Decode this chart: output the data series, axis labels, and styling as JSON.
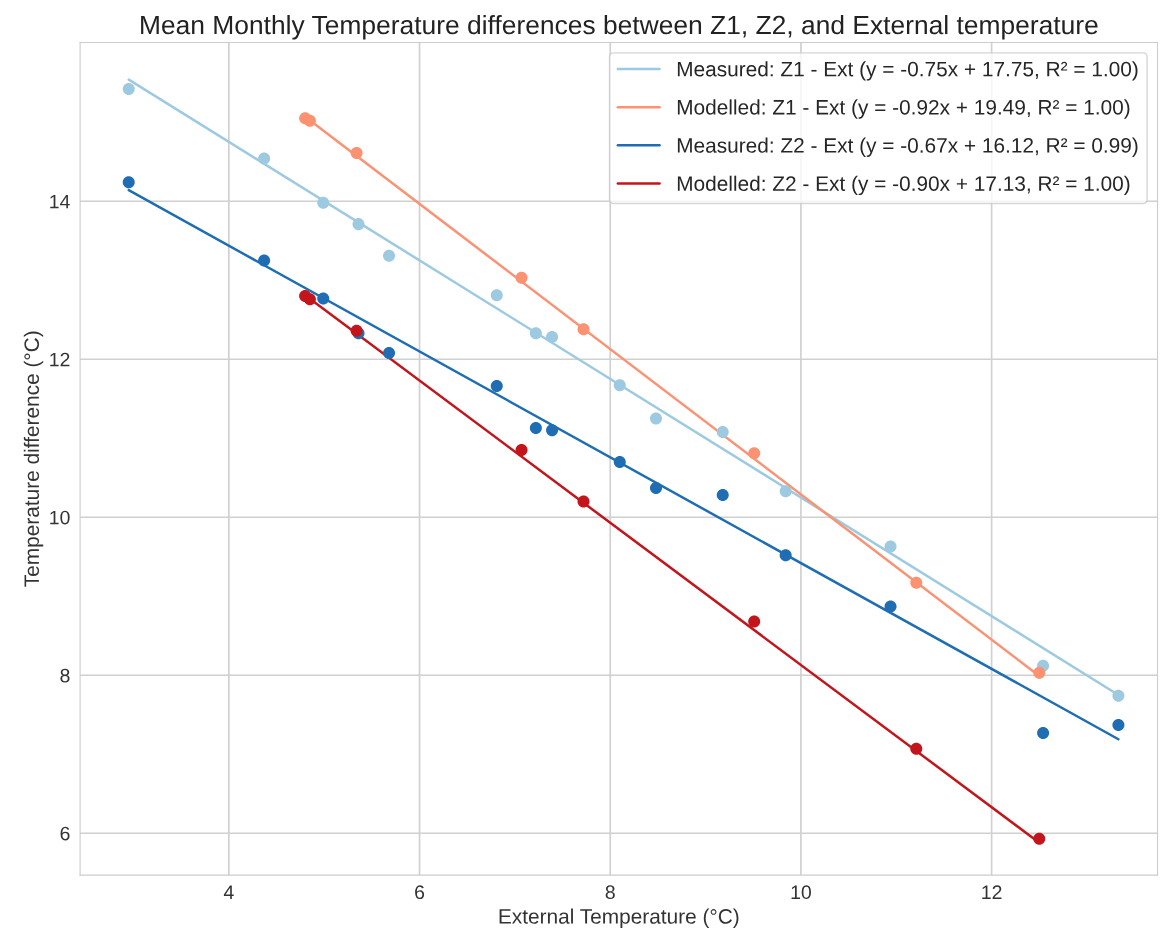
{
  "chart_data": {
    "type": "scatter",
    "title": "Mean Monthly Temperature differences between Z1, Z2, and External temperature",
    "xlabel": "External Temperature (°C)",
    "ylabel": "Temperature difference (°C)",
    "xlim": [
      2.44,
      13.74
    ],
    "ylim": [
      5.47,
      16.01
    ],
    "xticks": [
      4,
      6,
      8,
      10,
      12
    ],
    "yticks": [
      6,
      8,
      10,
      12,
      14
    ],
    "grid": true,
    "legend": "top right",
    "series": [
      {
        "color": "#9ecae1",
        "marker": "circle",
        "x": [
          2.95,
          4.37,
          4.99,
          5.36,
          5.68,
          6.81,
          7.22,
          7.39,
          8.1,
          8.48,
          9.18,
          9.84,
          10.94,
          12.54,
          13.33
        ],
        "values": [
          15.42,
          14.54,
          13.98,
          13.71,
          13.31,
          12.81,
          12.33,
          12.28,
          11.67,
          11.25,
          11.08,
          10.33,
          9.63,
          8.12,
          7.74
        ]
      },
      {
        "color": "#fc9272",
        "marker": "circle",
        "x": [
          4.8,
          4.85,
          5.34,
          7.07,
          7.72,
          9.51,
          11.21,
          12.5
        ],
        "values": [
          15.05,
          15.02,
          14.61,
          13.03,
          12.38,
          10.81,
          9.17,
          8.03
        ]
      },
      {
        "color": "#1f6eb4",
        "marker": "circle",
        "x": [
          2.95,
          4.37,
          4.99,
          5.36,
          5.68,
          6.81,
          7.22,
          7.39,
          8.1,
          8.48,
          9.18,
          9.84,
          10.94,
          12.54,
          13.33
        ],
        "values": [
          14.24,
          13.25,
          12.77,
          12.33,
          12.08,
          11.66,
          11.13,
          11.1,
          10.7,
          10.37,
          10.28,
          9.52,
          8.87,
          7.27,
          7.37
        ]
      },
      {
        "color": "#c3161c",
        "marker": "circle",
        "x": [
          4.8,
          4.85,
          5.34,
          7.07,
          7.72,
          9.51,
          11.21,
          12.5
        ],
        "values": [
          12.8,
          12.76,
          12.36,
          10.85,
          10.2,
          8.68,
          7.07,
          5.93
        ]
      },
      {
        "type": "line",
        "marker": "none",
        "name": "Measured: Z1 - Ext (y = -0.75x + 17.75, R² = 1.00)",
        "color": "#9ecae1",
        "x": [
          2.95,
          13.33
        ],
        "values": [
          15.54,
          7.75
        ]
      },
      {
        "type": "line",
        "marker": "none",
        "name": "Modelled: Z1 - Ext (y = -0.92x + 19.49, R² = 1.00)",
        "color": "#fc9272",
        "x": [
          4.8,
          12.5
        ],
        "values": [
          15.07,
          7.99
        ]
      },
      {
        "type": "line",
        "marker": "none",
        "name": "Measured: Z2 - Ext (y = -0.67x + 16.12, R² = 0.99)",
        "color": "#1f6eb4",
        "x": [
          2.95,
          13.33
        ],
        "values": [
          14.14,
          7.19
        ]
      },
      {
        "type": "line",
        "marker": "none",
        "name": "Modelled: Z2 - Ext (y = -0.90x + 17.13, R² = 1.00)",
        "color": "#c3161c",
        "x": [
          4.8,
          12.5
        ],
        "values": [
          12.81,
          5.88
        ]
      }
    ]
  }
}
